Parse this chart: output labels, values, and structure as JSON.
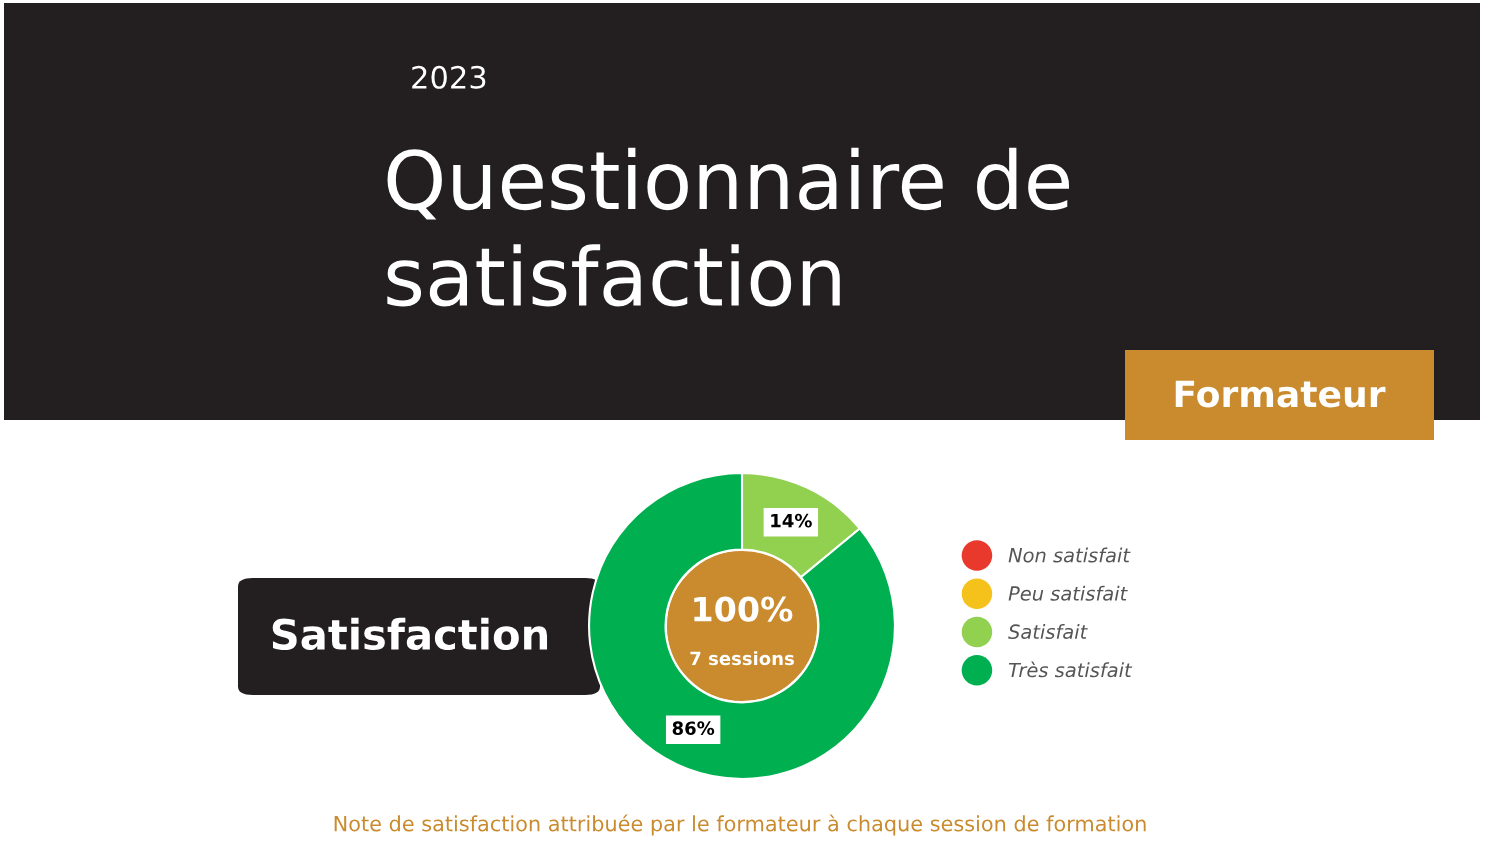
{
  "chart_data": {
    "type": "donut",
    "title": "Questionnaire de satisfaction",
    "subtitle": "2023",
    "categories": [
      "Non satisfait",
      "Peu satisfait",
      "Satisfait",
      "Très satisfait"
    ],
    "values": [
      0,
      0,
      14,
      86
    ],
    "colors": [
      "#e8392c",
      "#f5c21b",
      "#92d050",
      "#00b050"
    ],
    "value_labels": [
      null,
      null,
      "14%",
      "86%"
    ],
    "legend": "right",
    "annotations": [
      "Formateur",
      "Satisfaction",
      "100%",
      "7 sessions",
      "Note de satisfaction attribuée par le formateur à chaque session de formation"
    ]
  }
}
